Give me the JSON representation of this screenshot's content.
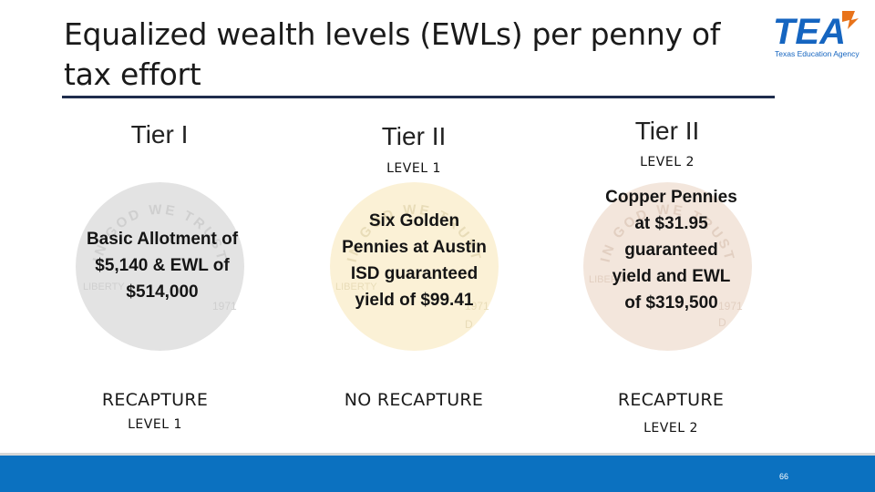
{
  "slide": {
    "title": "Equalized wealth levels (EWLs) per penny of tax effort",
    "page_number": "66"
  },
  "logo": {
    "wordmark": "TEA",
    "subtitle": "Texas Education Agency",
    "colors": {
      "primary": "#1565c0",
      "accent": "#e8731a"
    }
  },
  "columns": [
    {
      "tier": "Tier I",
      "level": "",
      "coin_text": "Basic Allotment of $5,140 & EWL of $514,000",
      "coin_color": "#e3e3e3",
      "recapture": "RECAPTURE",
      "recapture_level": "LEVEL 1"
    },
    {
      "tier": "Tier II",
      "level": "LEVEL 1",
      "coin_text": "Six Golden Pennies at Austin ISD guaranteed yield of $99.41",
      "coin_color": "#fbf1d6",
      "recapture": "NO RECAPTURE",
      "recapture_level": ""
    },
    {
      "tier": "Tier II",
      "level": "LEVEL 2",
      "coin_text": "Copper Pennies at $31.95 guaranteed yield and EWL of $319,500",
      "coin_color": "#f3e6dc",
      "recapture": "RECAPTURE",
      "recapture_level": "LEVEL 2"
    }
  ],
  "coin_engraving": {
    "motto": "IN GOD WE TRUST",
    "liberty": "LIBERTY",
    "year": "1971",
    "mint": "D"
  },
  "colors": {
    "footer_bar": "#0b71c0",
    "title_rule": "#1f2d4d"
  }
}
